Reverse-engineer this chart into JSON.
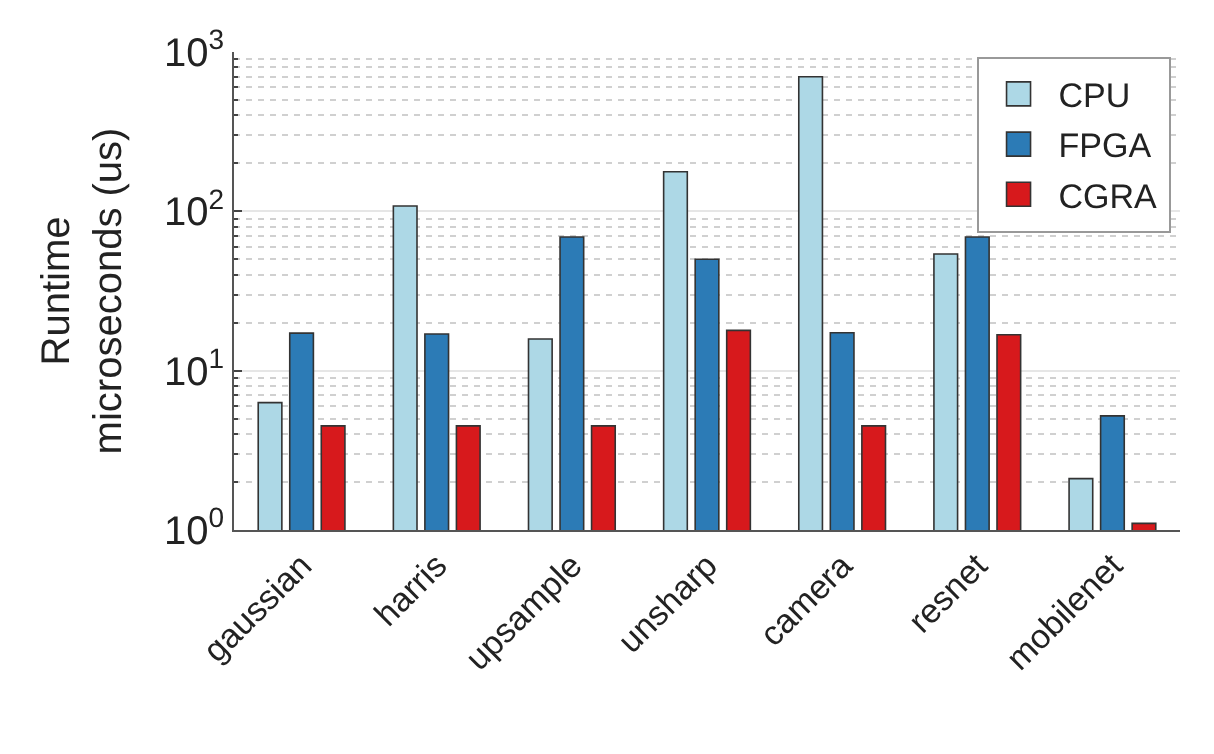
{
  "chart_data": {
    "type": "bar",
    "ylabel": "Runtime\nmicroseconds (us)",
    "categories": [
      "gaussian",
      "harris",
      "upsample",
      "unsharp",
      "camera",
      "resnet",
      "mobilenet"
    ],
    "series": [
      {
        "name": "CPU",
        "color": "#add8e6",
        "values": [
          6.3,
          108,
          15.8,
          177,
          700,
          54,
          2.1
        ]
      },
      {
        "name": "FPGA",
        "color": "#2c7bb6",
        "values": [
          17.2,
          17,
          69,
          50,
          17.3,
          69,
          5.2
        ]
      },
      {
        "name": "CGRA",
        "color": "#d7191c",
        "values": [
          4.5,
          4.5,
          4.5,
          17.9,
          4.5,
          16.8,
          1.1
        ]
      }
    ],
    "log": "y",
    "ylim": [
      1,
      1000
    ],
    "yticks": [
      {
        "value": 1,
        "label": "10$^{0}$"
      },
      {
        "value": 10,
        "label": "10$^{1}$"
      },
      {
        "value": 100,
        "label": "10$^{2}$"
      },
      {
        "value": 1000,
        "label": "10$^{3}$"
      }
    ],
    "grid": "y",
    "legend": "top right"
  }
}
